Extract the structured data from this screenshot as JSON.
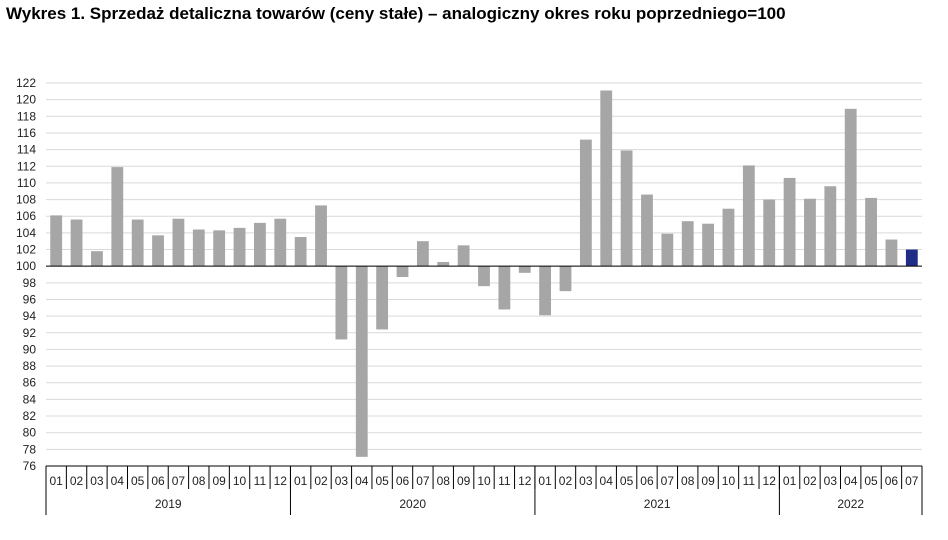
{
  "title": "Wykres 1. Sprzedaż detaliczna towarów (ceny stałe) – analogiczny okres roku poprzedniego=100",
  "colors": {
    "bar": "#a6a6a6",
    "highlight": "#1f2d86",
    "grid": "#d9d9d9",
    "axis": "#000000"
  },
  "chart_data": {
    "type": "bar",
    "title": "Wykres 1. Sprzedaż detaliczna towarów (ceny stałe) – analogiczny okres roku poprzedniego=100",
    "xlabel": "",
    "ylabel": "",
    "baseline": 100,
    "ylim": [
      76,
      122
    ],
    "yticks": [
      122,
      120,
      118,
      116,
      114,
      112,
      110,
      108,
      106,
      104,
      102,
      100,
      98,
      96,
      94,
      92,
      90,
      88,
      86,
      84,
      82,
      80,
      78,
      76
    ],
    "grid": true,
    "highlight_last": true,
    "categories": [
      "01",
      "02",
      "03",
      "04",
      "05",
      "06",
      "07",
      "08",
      "09",
      "10",
      "11",
      "12",
      "01",
      "02",
      "03",
      "04",
      "05",
      "06",
      "07",
      "08",
      "09",
      "10",
      "11",
      "12",
      "01",
      "02",
      "03",
      "04",
      "05",
      "06",
      "07",
      "08",
      "09",
      "10",
      "11",
      "12",
      "01",
      "02",
      "03",
      "04",
      "05",
      "06",
      "07"
    ],
    "years": [
      {
        "label": "2019",
        "months": 12
      },
      {
        "label": "2020",
        "months": 12
      },
      {
        "label": "2021",
        "months": 12
      },
      {
        "label": "2022",
        "months": 7
      }
    ],
    "values": [
      106.1,
      105.6,
      101.8,
      111.9,
      105.6,
      103.7,
      105.7,
      104.4,
      104.3,
      104.6,
      105.2,
      105.7,
      103.5,
      107.3,
      91.2,
      77.1,
      92.4,
      98.7,
      103.0,
      100.5,
      102.5,
      97.6,
      94.8,
      99.2,
      94.1,
      97.0,
      115.2,
      121.1,
      113.9,
      108.6,
      103.9,
      105.4,
      105.1,
      106.9,
      112.1,
      108.0,
      110.6,
      108.1,
      109.6,
      118.9,
      108.2,
      103.2,
      102.0
    ]
  }
}
